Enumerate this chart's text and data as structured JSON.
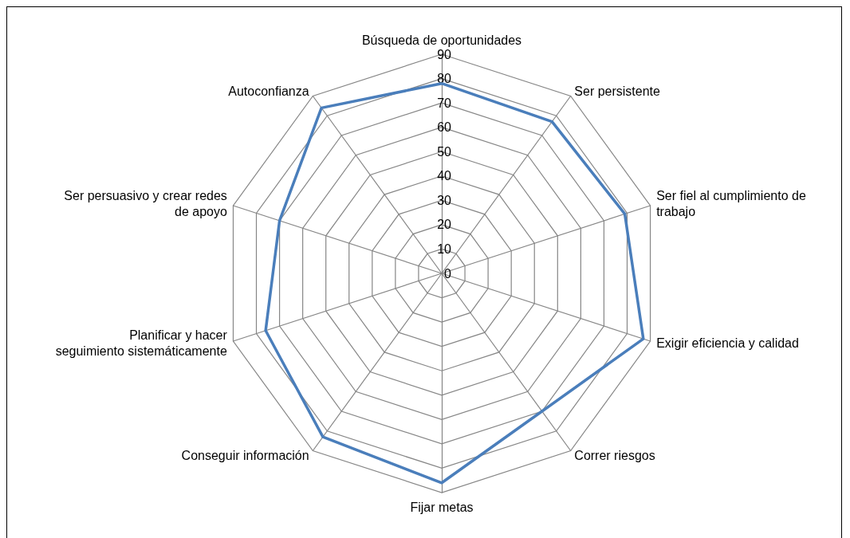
{
  "chart_data": {
    "type": "radar",
    "categories": [
      "Búsqueda de oportunidades",
      "Ser persistente",
      "Ser fiel al cumplimiento de trabajo",
      "Exigir eficiencia y calidad",
      "Correr riesgos",
      "Fijar metas",
      "Conseguir información",
      "Planificar y hacer seguimiento sistemáticamente",
      "Ser persuasivo y crear redes de apoyo",
      "Autoconfianza"
    ],
    "series": [
      {
        "color": "#4a7ebb",
        "values": [
          78,
          77,
          79,
          87,
          70,
          86,
          83,
          76,
          70,
          84
        ]
      }
    ],
    "ylim": [
      0,
      90
    ],
    "yticks": [
      0,
      10,
      20,
      30,
      40,
      50,
      60,
      70,
      80,
      90
    ],
    "grid": true,
    "marker": "none",
    "line_style": "solid"
  }
}
